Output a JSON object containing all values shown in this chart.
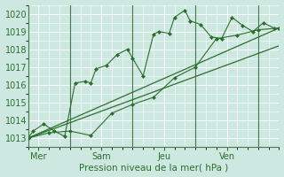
{
  "bg_color": "#cce8e0",
  "grid_major_color": "#ffffff",
  "grid_minor_color": "#ddf0ea",
  "line_color": "#2d6e2d",
  "marker_color": "#2d6e2d",
  "ylim": [
    1012.5,
    1020.5
  ],
  "xlim": [
    0,
    48
  ],
  "yticks": [
    1013,
    1014,
    1015,
    1016,
    1017,
    1018,
    1019,
    1020
  ],
  "xtick_positions": [
    2,
    14,
    26,
    38
  ],
  "xtick_labels": [
    "Mer",
    "Sam",
    "Jeu",
    "Ven"
  ],
  "vline_positions": [
    8,
    20,
    32,
    44
  ],
  "xlabel": "Pression niveau de la mer( hPa )",
  "series1_x": [
    0,
    1,
    3,
    5,
    7,
    9,
    11,
    12,
    13,
    15,
    17,
    19,
    20,
    22,
    24,
    25,
    27,
    28,
    30,
    31,
    33,
    35,
    37,
    39,
    41,
    43,
    45,
    47
  ],
  "series1_y": [
    1013.0,
    1013.4,
    1013.8,
    1013.4,
    1013.1,
    1016.1,
    1016.2,
    1016.1,
    1016.9,
    1017.1,
    1017.7,
    1018.0,
    1017.5,
    1016.5,
    1018.85,
    1019.0,
    1018.9,
    1019.8,
    1020.2,
    1019.6,
    1019.4,
    1018.7,
    1018.6,
    1019.8,
    1019.35,
    1019.0,
    1019.5,
    1019.2
  ],
  "series2_x": [
    0,
    4,
    8,
    12,
    16,
    20,
    24,
    28,
    32,
    36,
    40,
    44,
    48
  ],
  "series2_y": [
    1013.0,
    1013.3,
    1013.4,
    1013.15,
    1014.4,
    1014.9,
    1015.3,
    1016.4,
    1017.0,
    1018.6,
    1018.8,
    1019.1,
    1019.2
  ],
  "trend1_x": [
    0,
    48
  ],
  "trend1_y": [
    1013.0,
    1019.2
  ],
  "trend2_x": [
    0,
    48
  ],
  "trend2_y": [
    1013.0,
    1018.2
  ],
  "font_size": 7.0
}
